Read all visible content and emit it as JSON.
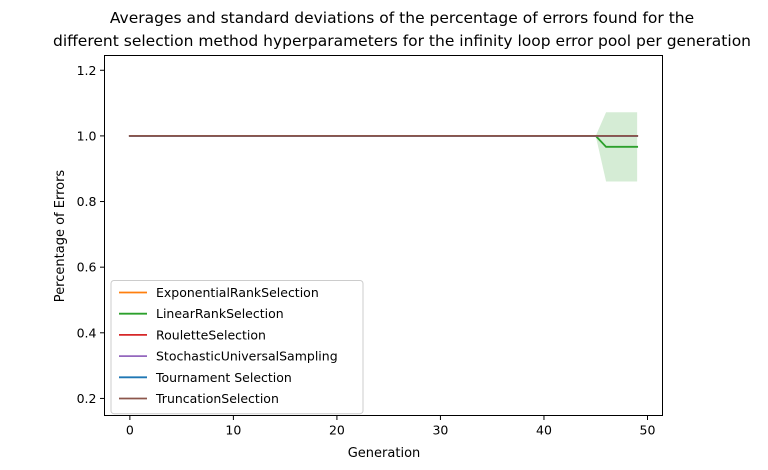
{
  "chart_data": {
    "type": "line",
    "title_lines": [
      "Averages and standard deviations of the percentage of errors found for the",
      "different selection method hyperparameters for the infinity loop error pool per generation"
    ],
    "xlabel": "Generation",
    "ylabel": "Percentage of Errors",
    "xlim": [
      -2.45,
      51.45
    ],
    "ylim": [
      0.148,
      1.245
    ],
    "xticks": [
      0,
      10,
      20,
      30,
      40,
      50
    ],
    "yticks": [
      0.2,
      0.4,
      0.6,
      0.8,
      1.0,
      1.2
    ],
    "xtick_labels": [
      "0",
      "10",
      "20",
      "30",
      "40",
      "50"
    ],
    "ytick_labels": [
      "0.2",
      "0.4",
      "0.6",
      "0.8",
      "1.0",
      "1.2"
    ],
    "grid": false,
    "legend_position": "lower-left",
    "series": [
      {
        "name": "ExponentialRankSelection",
        "color": "#ff7f0e",
        "x_start": 0,
        "x_end": 49,
        "constant_mean": 1.0,
        "points": [],
        "band_points": []
      },
      {
        "name": "LinearRankSelection",
        "color": "#2ca02c",
        "x_start": 0,
        "x_end": 49,
        "constant_mean": 1.0,
        "points": [
          [
            45,
            1.0
          ],
          [
            46,
            0.9667
          ],
          [
            47,
            0.9667
          ],
          [
            48,
            0.9667
          ],
          [
            49,
            0.9667
          ]
        ],
        "band_points": [
          [
            45,
            1.0,
            1.0
          ],
          [
            46,
            0.8611,
            1.0722
          ],
          [
            47,
            0.8611,
            1.0722
          ],
          [
            48,
            0.8611,
            1.0722
          ],
          [
            49,
            0.8611,
            1.0722
          ]
        ]
      },
      {
        "name": "RouletteSelection",
        "color": "#d62728",
        "x_start": 0,
        "x_end": 49,
        "constant_mean": 1.0,
        "points": [],
        "band_points": []
      },
      {
        "name": "StochasticUniversalSampling",
        "color": "#9467bd",
        "x_start": 0,
        "x_end": 49,
        "constant_mean": 1.0,
        "points": [],
        "band_points": []
      },
      {
        "name": "Tournament Selection",
        "color": "#1f77b4",
        "x_start": 0,
        "x_end": 49,
        "constant_mean": 1.0,
        "points": [],
        "band_points": []
      },
      {
        "name": "TruncationSelection",
        "color": "#8c564b",
        "x_start": 0,
        "x_end": 49,
        "constant_mean": 1.0,
        "points": [],
        "band_points": []
      }
    ]
  }
}
